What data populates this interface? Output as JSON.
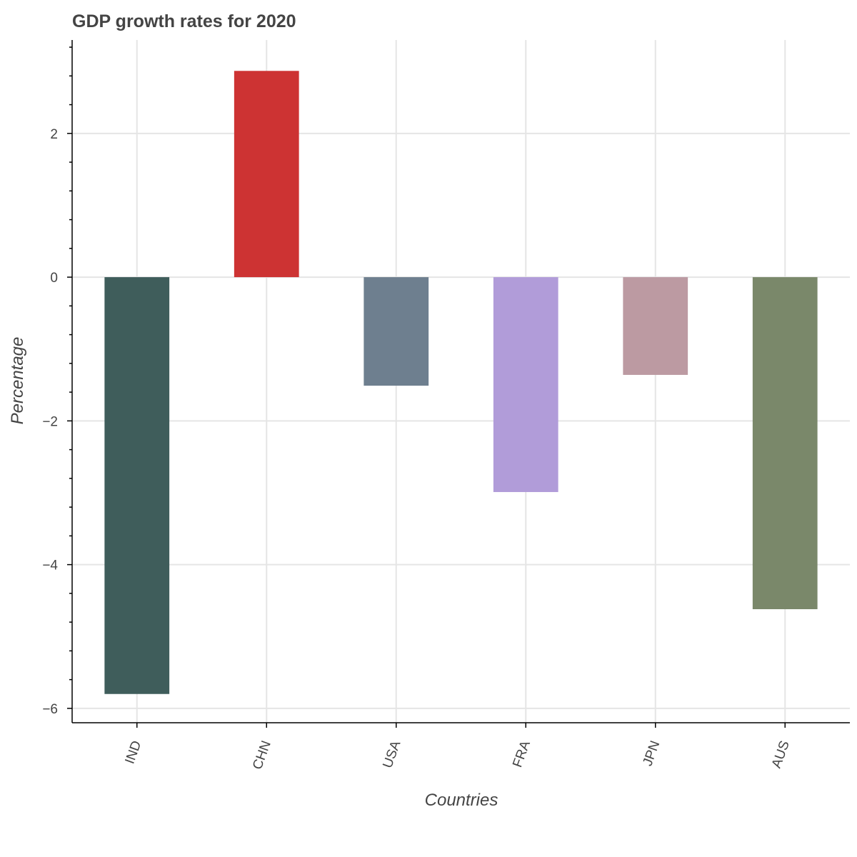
{
  "chart_data": {
    "type": "bar",
    "title": "GDP growth rates for 2020",
    "xlabel": "Countries",
    "ylabel": "Percentage",
    "categories": [
      "IND",
      "CHN",
      "USA",
      "FRA",
      "JPN",
      "AUS"
    ],
    "values": [
      -5.8,
      2.87,
      -1.51,
      -2.99,
      -1.36,
      -4.62
    ],
    "colors": [
      "#3f5d5b",
      "#cd3333",
      "#6e7f8f",
      "#b19cd9",
      "#bc9aa2",
      "#7a886a"
    ],
    "ylim": [
      -6.2,
      3.3
    ],
    "yticks": [
      -6,
      -4,
      -2,
      0,
      2
    ],
    "ytick_labels": [
      "−6",
      "−4",
      "−2",
      "0",
      "2"
    ],
    "grid": true
  }
}
